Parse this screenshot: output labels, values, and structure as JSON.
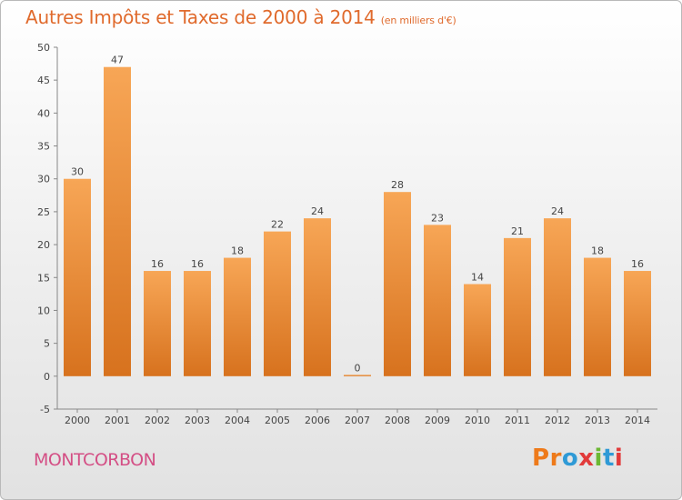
{
  "chart_data": {
    "type": "bar",
    "title": "Autres Impôts et Taxes de 2000 à 2014",
    "subtitle": "(en milliers d'€)",
    "categories": [
      "2000",
      "2001",
      "2002",
      "2003",
      "2004",
      "2005",
      "2006",
      "2007",
      "2008",
      "2009",
      "2010",
      "2011",
      "2012",
      "2013",
      "2014"
    ],
    "values": [
      30,
      47,
      16,
      16,
      18,
      22,
      24,
      0,
      28,
      23,
      14,
      21,
      24,
      18,
      16
    ],
    "ylim": [
      -5,
      50
    ],
    "yticks": [
      -5,
      0,
      5,
      10,
      15,
      20,
      25,
      30,
      35,
      40,
      45,
      50
    ],
    "grid": false,
    "bar_color": "#f0923a"
  },
  "footer": {
    "place": "MONTCORBON",
    "logo": "Proxiti"
  },
  "colors": {
    "title": "#e06a2c",
    "place": "#d44f85",
    "logo_letters": [
      "#ee7a1a",
      "#ee7a1a",
      "#2f9ad6",
      "#e23a3a",
      "#6cb833",
      "#2f9ad6",
      "#e23a3a"
    ]
  }
}
